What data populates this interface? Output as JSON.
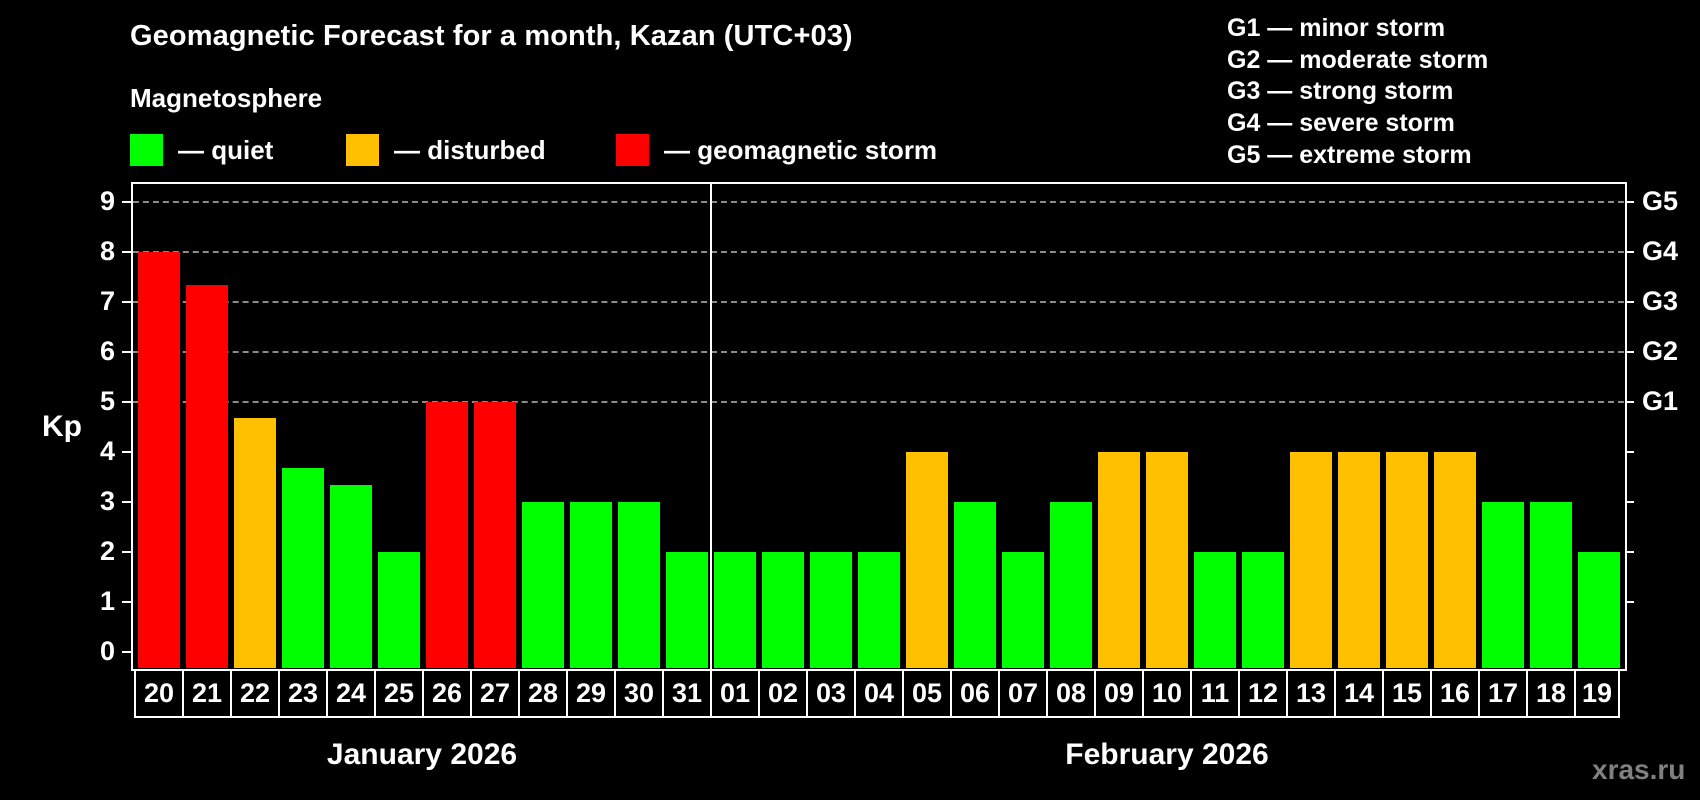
{
  "header": {
    "title": "Geomagnetic Forecast for a month, Kazan (UTC+03)",
    "subtitle": "Magnetosphere"
  },
  "legend": {
    "items": [
      {
        "label": "— quiet",
        "color": "#00FF00"
      },
      {
        "label": "— disturbed",
        "color": "#FFC000"
      },
      {
        "label": "— geomagnetic storm",
        "color": "#FF0000"
      }
    ]
  },
  "storm_scale": {
    "items": [
      {
        "level": "G1",
        "text": "G1 — minor storm",
        "kp": 5
      },
      {
        "level": "G2",
        "text": "G2 — moderate storm",
        "kp": 6
      },
      {
        "level": "G3",
        "text": "G3 — strong storm",
        "kp": 7
      },
      {
        "level": "G4",
        "text": "G4 — severe storm",
        "kp": 8
      },
      {
        "level": "G5",
        "text": "G5 — extreme storm",
        "kp": 9
      }
    ]
  },
  "axis": {
    "ylabel": "Kp",
    "yticks": [
      "0",
      "1",
      "2",
      "3",
      "4",
      "5",
      "6",
      "7",
      "8",
      "9"
    ],
    "right_ticks": [
      "G1",
      "G2",
      "G3",
      "G4",
      "G5"
    ]
  },
  "months": {
    "left": "January 2026",
    "right": "February 2026"
  },
  "watermark": "xras.ru",
  "chart_data": {
    "type": "bar",
    "title": "Geomagnetic Forecast for a month, Kazan (UTC+03)",
    "subtitle": "Magnetosphere",
    "xlabel": "",
    "ylabel": "Kp",
    "ylim": [
      0,
      9
    ],
    "grid": true,
    "legend_position": "top",
    "legend": [
      {
        "label": "quiet",
        "color": "#00FF00"
      },
      {
        "label": "disturbed",
        "color": "#FFC000"
      },
      {
        "label": "geomagnetic storm",
        "color": "#FF0000"
      }
    ],
    "secondary_axis": {
      "labels": [
        "G1",
        "G2",
        "G3",
        "G4",
        "G5"
      ],
      "at_kp": [
        5,
        6,
        7,
        8,
        9
      ]
    },
    "month_groups": [
      {
        "label": "January 2026",
        "categories": [
          "20",
          "21",
          "22",
          "23",
          "24",
          "25",
          "26",
          "27",
          "28",
          "29",
          "30",
          "31"
        ]
      },
      {
        "label": "February 2026",
        "categories": [
          "01",
          "02",
          "03",
          "04",
          "05",
          "06",
          "07",
          "08",
          "09",
          "10",
          "11",
          "12",
          "13",
          "14",
          "15",
          "16",
          "17",
          "18",
          "19"
        ]
      }
    ],
    "categories": [
      "20",
      "21",
      "22",
      "23",
      "24",
      "25",
      "26",
      "27",
      "28",
      "29",
      "30",
      "31",
      "01",
      "02",
      "03",
      "04",
      "05",
      "06",
      "07",
      "08",
      "09",
      "10",
      "11",
      "12",
      "13",
      "14",
      "15",
      "16",
      "17",
      "18",
      "19"
    ],
    "values": [
      8,
      7.33,
      4.67,
      3.67,
      3.33,
      2,
      5,
      5,
      3,
      3,
      3,
      2,
      2,
      2,
      2,
      2,
      4,
      3,
      2,
      3,
      4,
      4,
      2,
      2,
      4,
      4,
      4,
      4,
      3,
      3,
      2
    ],
    "status": [
      "storm",
      "storm",
      "disturbed",
      "quiet",
      "quiet",
      "quiet",
      "storm",
      "storm",
      "quiet",
      "quiet",
      "quiet",
      "quiet",
      "quiet",
      "quiet",
      "quiet",
      "quiet",
      "disturbed",
      "quiet",
      "quiet",
      "quiet",
      "disturbed",
      "disturbed",
      "quiet",
      "quiet",
      "disturbed",
      "disturbed",
      "disturbed",
      "disturbed",
      "quiet",
      "quiet",
      "quiet"
    ],
    "colors": {
      "quiet": "#00FF00",
      "disturbed": "#FFC000",
      "storm": "#FF0000"
    }
  }
}
